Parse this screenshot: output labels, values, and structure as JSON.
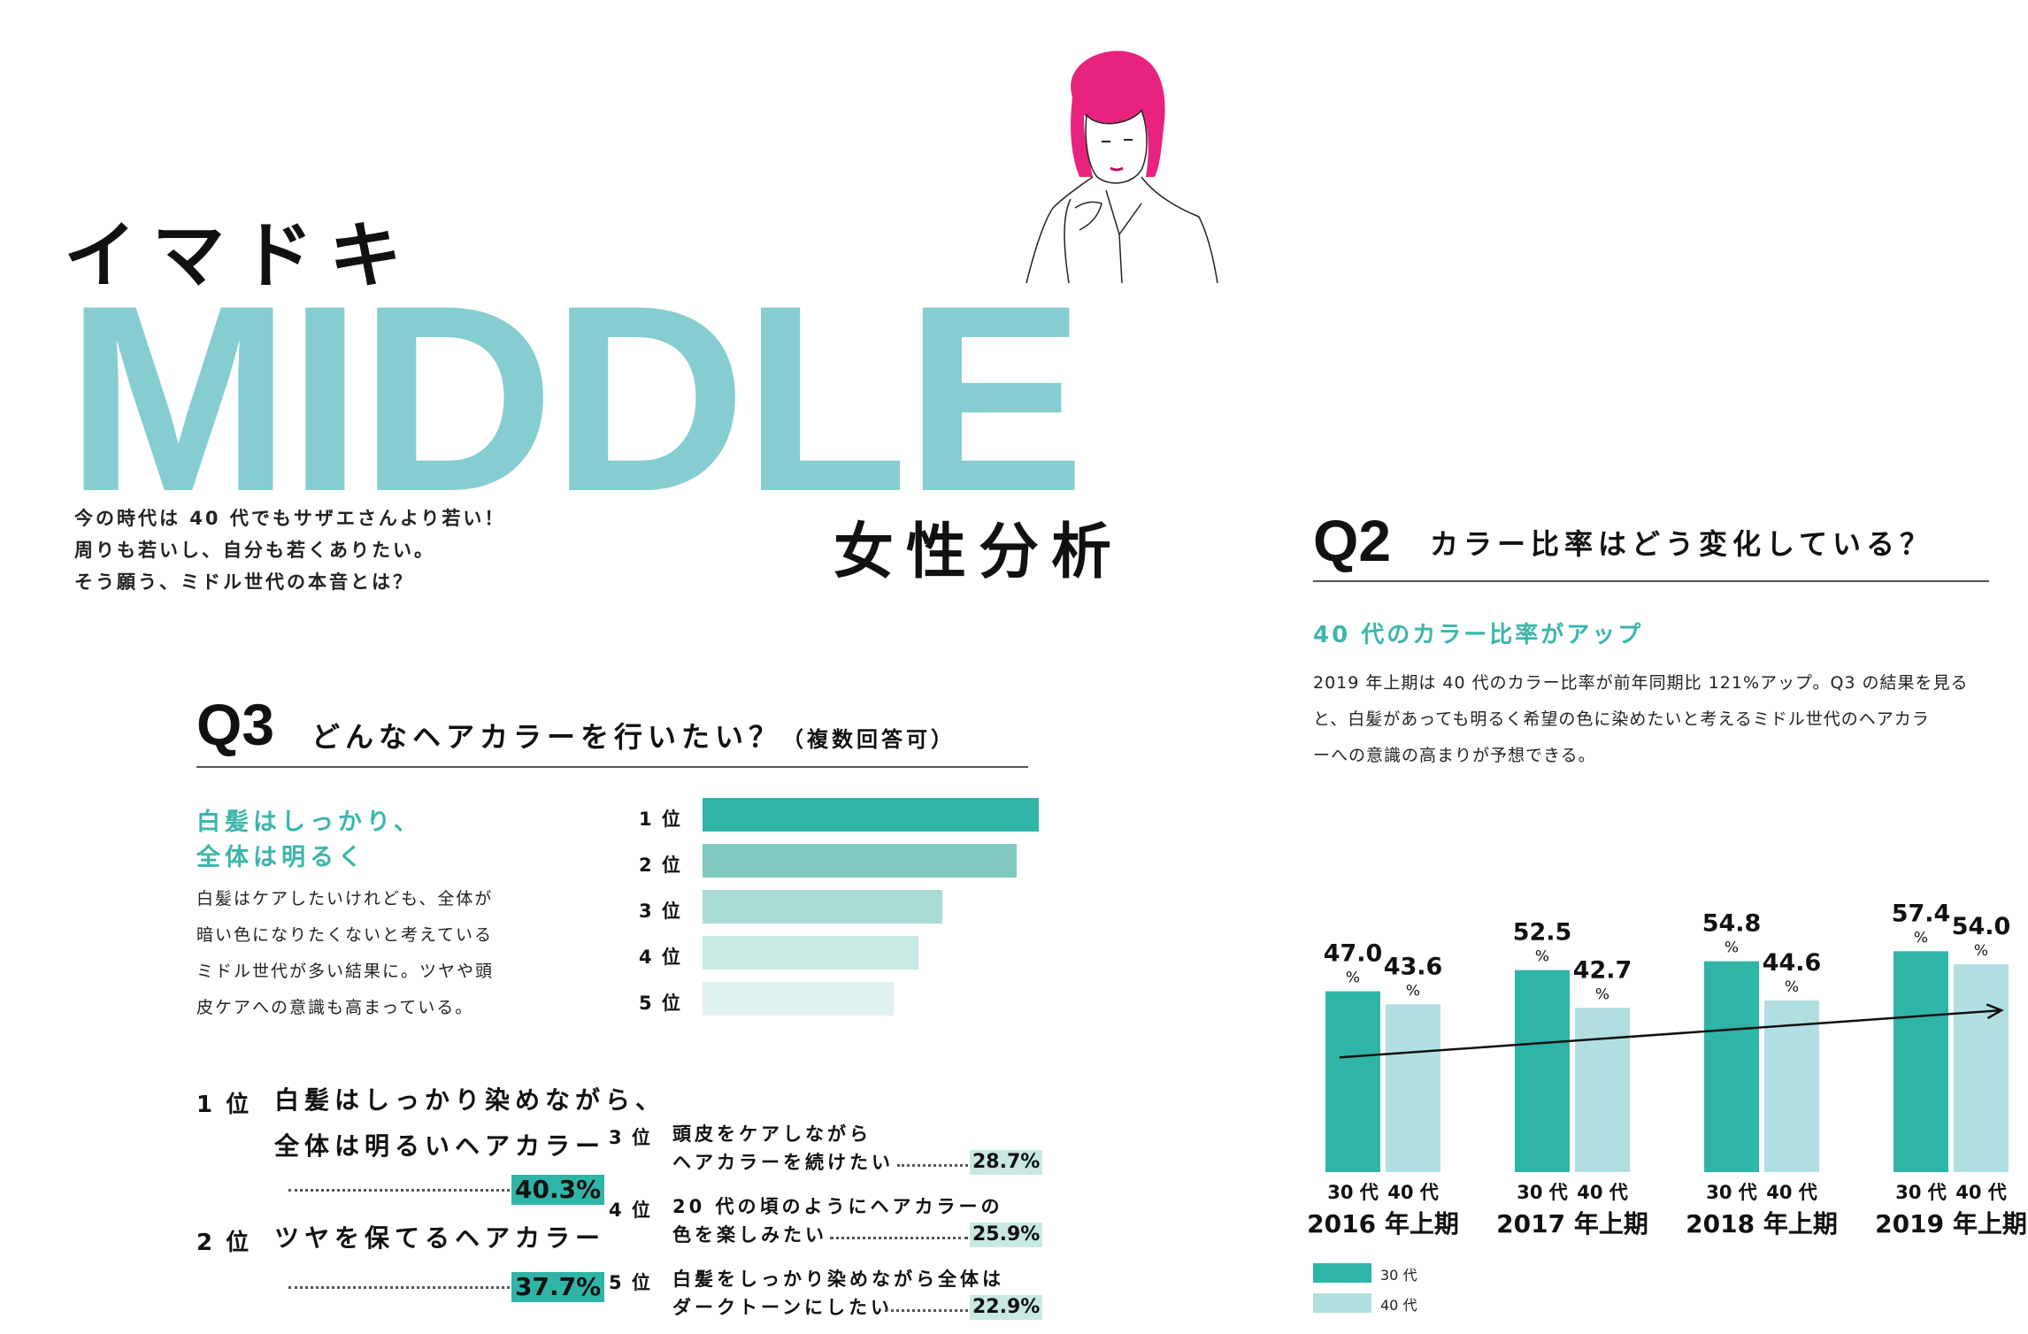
{
  "header": {
    "kana": "イマドキ",
    "middle": "MIDDLE",
    "subtitle": "女性分析",
    "intro": [
      "今の時代は 40 代でもサザエさんより若い！",
      "周りも若いし、自分も若くありたい。",
      "そう願う、ミドル世代の本音とは？"
    ]
  },
  "colors": {
    "teal_title": "#85cdd0",
    "teal_dark": "#2fb5a8",
    "teal_light": "#b1dfe1",
    "accent_text": "#3bb6ab",
    "hair": "#e8227f"
  },
  "q3": {
    "number": "Q3",
    "question": "どんなヘアカラーを行いたい？",
    "note": "（複数回答可）",
    "headline": [
      "白髪はしっかり、",
      "全体は明るく"
    ],
    "body": [
      "白髪はケアしたいけれども、全体が",
      "暗い色になりたくないと考えている",
      "ミドル世代が多い結果に。ツヤや頭",
      "皮ケアへの意識も高まっている。"
    ],
    "ranks": [
      {
        "rank": "1 位",
        "lines": [
          "白髪はしっかり染めながら、",
          "全体は明るいヘアカラー"
        ],
        "pct": "40.3%"
      },
      {
        "rank": "2 位",
        "lines": [
          "ツヤを保てるヘアカラー"
        ],
        "pct": "37.7%"
      },
      {
        "rank": "3 位",
        "lines": [
          "頭皮をケアしながら",
          "ヘアカラーを続けたい"
        ],
        "pct": "28.7%"
      },
      {
        "rank": "4 位",
        "lines": [
          "20 代の頃のようにヘアカラーの",
          "色を楽しみたい"
        ],
        "pct": "25.9%"
      },
      {
        "rank": "5 位",
        "lines": [
          "白髪をしっかり染めながら全体は",
          "ダークトーンにしたい"
        ],
        "pct": "22.9%"
      }
    ]
  },
  "q2": {
    "number": "Q2",
    "question": "カラー比率はどう変化している？",
    "headline": "40 代のカラー比率がアップ",
    "body": [
      "2019 年上期は 40 代のカラー比率が前年同期比 121%アップ。Q3 の結果を見る",
      "と、白髪があっても明るく希望の色に染めたいと考えるミドル世代のヘアカラ",
      "ーへの意識の高まりが予想できる。"
    ],
    "legend": [
      "30 代",
      "40 代"
    ]
  },
  "chart_data": [
    {
      "type": "bar",
      "orientation": "horizontal",
      "categories": [
        "1 位",
        "2 位",
        "3 位",
        "4 位",
        "5 位"
      ],
      "values": [
        40.3,
        37.7,
        28.7,
        25.9,
        22.9
      ],
      "colors": [
        "#2fb5a8",
        "#7ec8bf",
        "#a9dbd4",
        "#c8e8e3",
        "#e0f2ef"
      ],
      "xlim": [
        0,
        40.3
      ]
    },
    {
      "type": "bar",
      "categories": [
        "2016 年上期",
        "2017 年上期",
        "2018 年上期",
        "2019 年上期"
      ],
      "group_labels": [
        "30 代",
        "40 代"
      ],
      "series": [
        {
          "name": "30 代",
          "values": [
            47.0,
            52.5,
            54.8,
            57.4
          ],
          "labels": [
            "47.0",
            "52.5",
            "54.8",
            "57.4"
          ],
          "color": "#2fb5a8"
        },
        {
          "name": "40 代",
          "values": [
            43.6,
            42.7,
            44.6,
            54.0
          ],
          "labels": [
            "43.6",
            "42.7",
            "44.6",
            "54.0"
          ],
          "color": "#b1dfe1"
        }
      ],
      "unit": "%",
      "ylim": [
        0,
        60
      ],
      "trend_arrow": true
    }
  ]
}
